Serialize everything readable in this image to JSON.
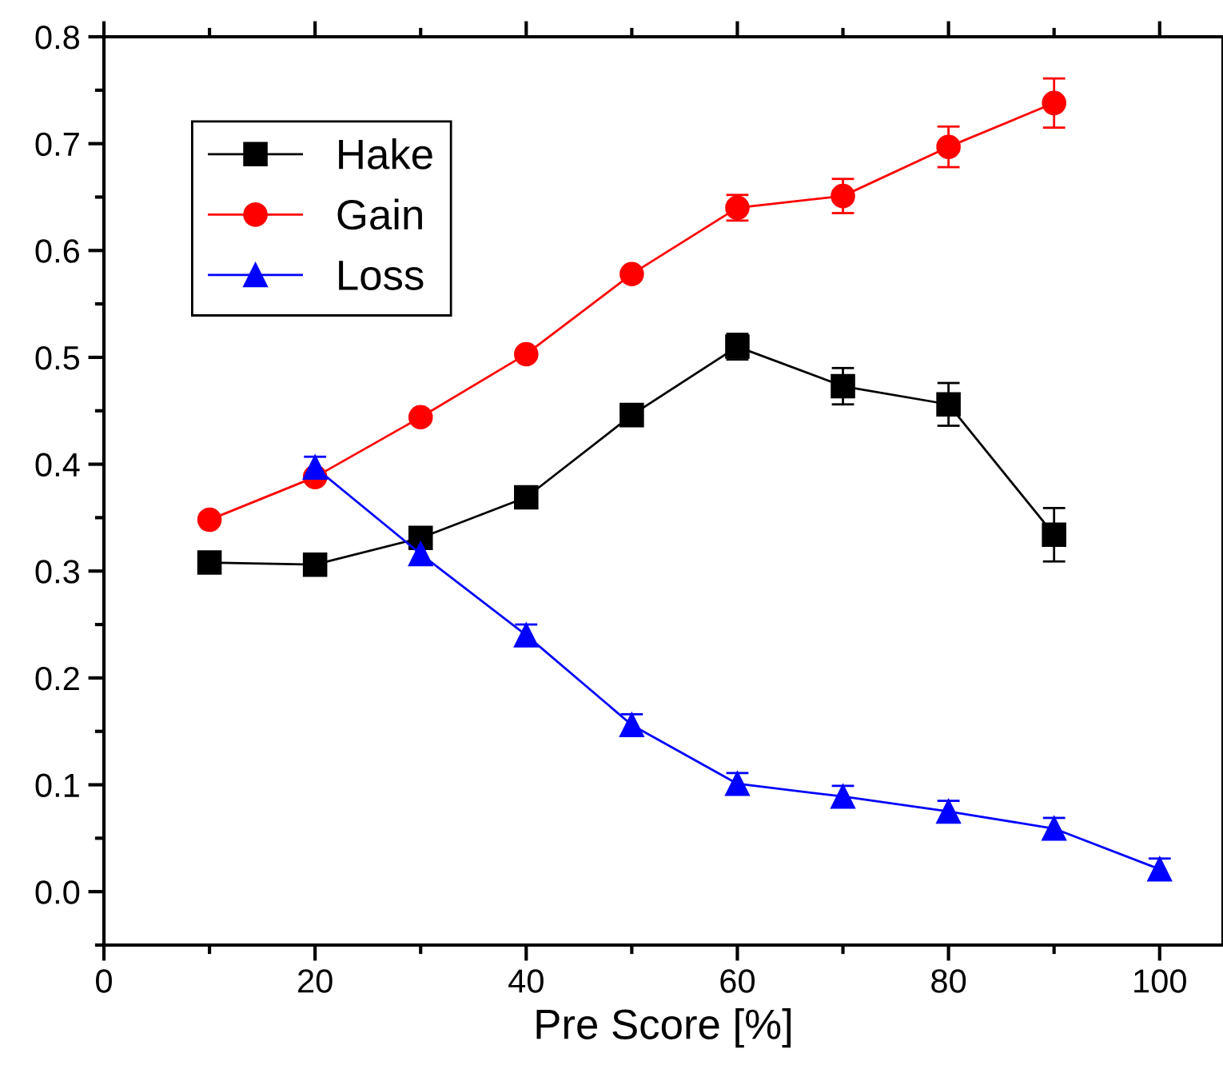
{
  "chart_data": {
    "type": "line",
    "xlabel": "Pre Score [%]",
    "xlim": [
      0,
      106
    ],
    "xticks": [
      0,
      20,
      40,
      60,
      80,
      100
    ],
    "ylim": [
      -0.05,
      0.8
    ],
    "yticks": [
      "0.0",
      0.1,
      0.2,
      0.3,
      0.4,
      0.5,
      0.6,
      0.7,
      0.8
    ],
    "legend": "top left",
    "grid": false,
    "series": [
      {
        "name": "Hake",
        "color": "#000000",
        "marker": "square",
        "x": [
          10,
          20,
          30,
          40,
          50,
          60,
          70,
          80,
          90
        ],
        "values": [
          0.308,
          0.306,
          0.331,
          0.369,
          0.446,
          0.51,
          0.473,
          0.456,
          0.334
        ],
        "errors": [
          null,
          null,
          null,
          null,
          null,
          0.012,
          0.017,
          0.02,
          0.025
        ]
      },
      {
        "name": "Gain",
        "color": "#ff0000",
        "marker": "circle",
        "x": [
          10,
          20,
          30,
          40,
          50,
          60,
          70,
          80,
          90
        ],
        "values": [
          0.348,
          0.388,
          0.444,
          0.503,
          0.578,
          0.64,
          0.651,
          0.697,
          0.738
        ],
        "errors": [
          null,
          null,
          null,
          null,
          null,
          0.012,
          0.016,
          0.019,
          0.023
        ]
      },
      {
        "name": "Loss",
        "color": "#0000ff",
        "marker": "triangle",
        "x": [
          20,
          30,
          40,
          50,
          60,
          70,
          80,
          90,
          100
        ],
        "values": [
          0.397,
          0.316,
          0.24,
          0.156,
          0.101,
          0.089,
          0.075,
          0.059,
          0.021
        ],
        "errors": [
          0.01,
          0.01,
          0.01,
          0.01,
          0.01,
          0.01,
          0.01,
          0.01,
          0.01
        ]
      }
    ]
  }
}
